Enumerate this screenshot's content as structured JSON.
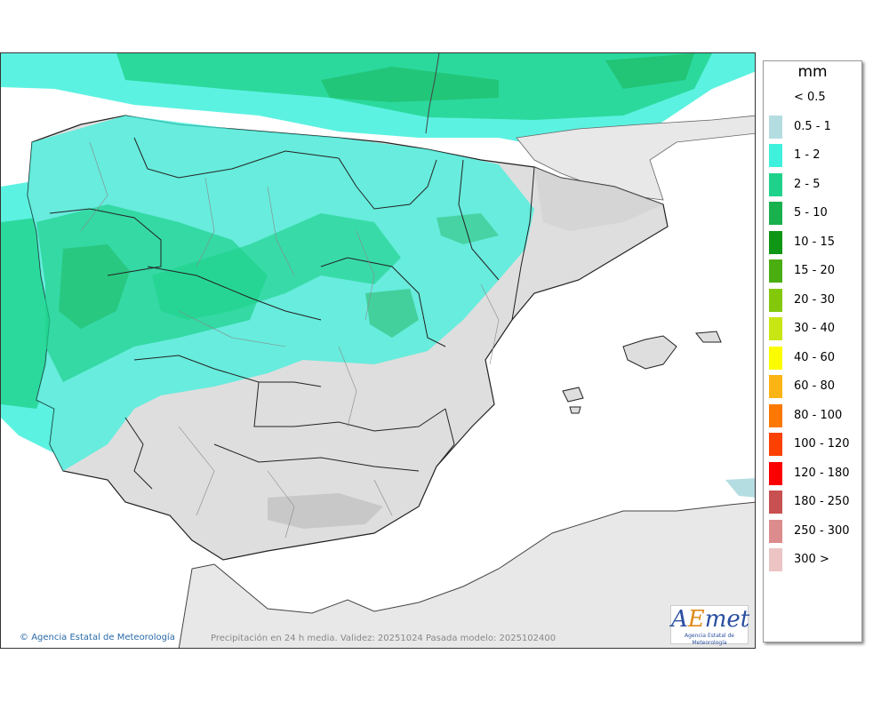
{
  "map": {
    "footer_text": "Precipitación en 24 h media. Validez: 20251024 Pasada modelo: 2025102400",
    "credit_text": "Agencia Estatal de Meteorología",
    "logo_text": "AEmet",
    "logo_subtext": "Agencia Estatal de Meteorología"
  },
  "legend": {
    "unit": "mm",
    "items": [
      {
        "label": "< 0.5",
        "color": "#ffffff"
      },
      {
        "label": "0.5 - 1",
        "color": "#b4dde2"
      },
      {
        "label": "1 - 2",
        "color": "#3ff0dc"
      },
      {
        "label": "2 - 5",
        "color": "#1fd28c"
      },
      {
        "label": "5 - 10",
        "color": "#19b04e"
      },
      {
        "label": "10 - 15",
        "color": "#0e9614"
      },
      {
        "label": "15 - 20",
        "color": "#4aae10"
      },
      {
        "label": "20 - 30",
        "color": "#84c80c"
      },
      {
        "label": "30 - 40",
        "color": "#c8e614"
      },
      {
        "label": "40 - 60",
        "color": "#fcfc00"
      },
      {
        "label": "60 - 80",
        "color": "#fcb414"
      },
      {
        "label": "80 - 100",
        "color": "#fc7800"
      },
      {
        "label": "100 - 120",
        "color": "#fc4000"
      },
      {
        "label": "120 - 180",
        "color": "#fc0000"
      },
      {
        "label": "180 - 250",
        "color": "#c85050"
      },
      {
        "label": "250 - 300",
        "color": "#dc8c8c"
      },
      {
        "label": "300 >",
        "color": "#ecc4c4"
      }
    ]
  }
}
